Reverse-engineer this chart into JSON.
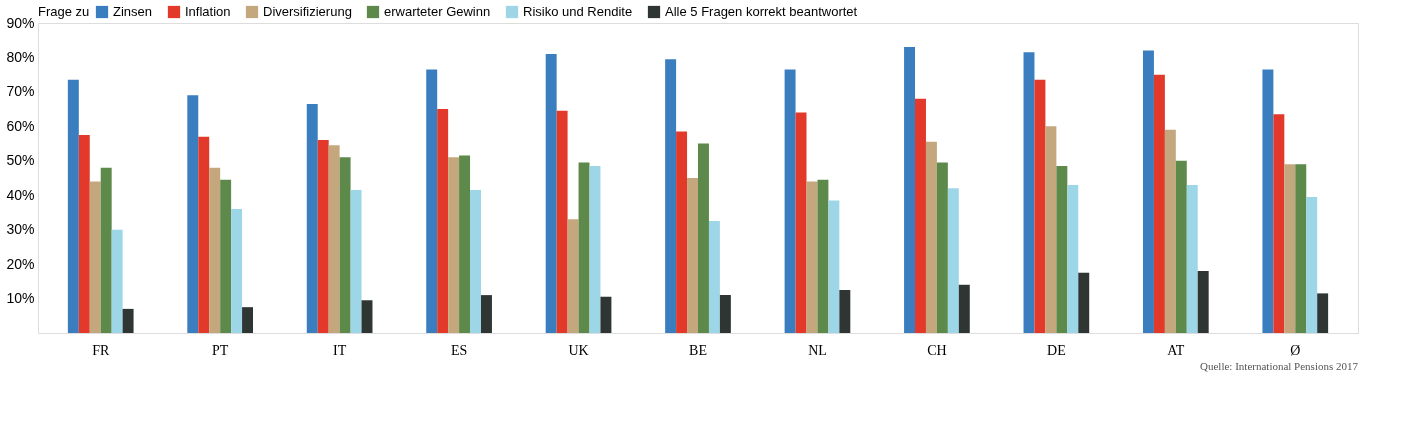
{
  "chart_data": {
    "type": "bar",
    "legend_title": "Frage zu",
    "categories": [
      "FR",
      "PT",
      "IT",
      "ES",
      "UK",
      "BE",
      "NL",
      "CH",
      "DE",
      "AT",
      "Ø"
    ],
    "series": [
      {
        "name": "Zinsen",
        "color": "#3a7ebf",
        "values": [
          73.5,
          69,
          66.5,
          76.5,
          81,
          79.5,
          76.5,
          83,
          81.5,
          82,
          76.5
        ]
      },
      {
        "name": "Inflation",
        "color": "#e2392b",
        "values": [
          57.5,
          57,
          56,
          65,
          64.5,
          58.5,
          64,
          68,
          73.5,
          75,
          63.5
        ]
      },
      {
        "name": "Diversifizierung",
        "color": "#c4a77d",
        "values": [
          44,
          48,
          54.5,
          51,
          33,
          45,
          44,
          55.5,
          60,
          59,
          49
        ]
      },
      {
        "name": "erwarteter Gewinn",
        "color": "#5d8a4a",
        "values": [
          48,
          44.5,
          51,
          51.5,
          49.5,
          55,
          44.5,
          49.5,
          48.5,
          50,
          49
        ]
      },
      {
        "name": "Risiko und Rendite",
        "color": "#9dd6e6",
        "values": [
          30,
          36,
          41.5,
          41.5,
          48.5,
          32.5,
          38.5,
          42,
          43,
          43,
          39.5
        ]
      },
      {
        "name": "Alle 5 Fragen korrekt beantwortet",
        "color": "#2f3533",
        "values": [
          7,
          7.5,
          9.5,
          11,
          10.5,
          11,
          12.5,
          14,
          17.5,
          18,
          11.5
        ]
      }
    ],
    "ylim": [
      0,
      90
    ],
    "yticks": [
      {
        "value": 10,
        "label": "10%"
      },
      {
        "value": 20,
        "label": "20%"
      },
      {
        "value": 30,
        "label": "30%"
      },
      {
        "value": 40,
        "label": "40%"
      },
      {
        "value": 50,
        "label": "50%"
      },
      {
        "value": 60,
        "label": "60%"
      },
      {
        "value": 70,
        "label": "70%"
      },
      {
        "value": 80,
        "label": "80%"
      },
      {
        "value": 90,
        "label": "90%"
      }
    ],
    "grid": false,
    "legend": "top left",
    "annotations": [
      "Quelle: International Pensions 2017"
    ]
  }
}
